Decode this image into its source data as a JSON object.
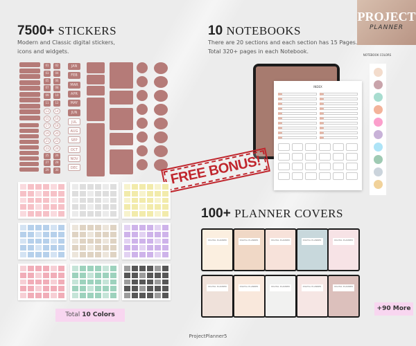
{
  "logo": {
    "line1": "PROJECT",
    "line2": "PLANNER"
  },
  "stickers": {
    "count": "7500+",
    "title": "STICKERS",
    "subtitle_1": "Modern and Classic digital stickers,",
    "subtitle_2": "icons and widgets.",
    "months": [
      "JAN",
      "FEB",
      "MAR",
      "APR",
      "MAY",
      "JUN",
      "JUL",
      "AUG",
      "SEP",
      "OCT",
      "NOV",
      "DEC"
    ],
    "numbers": [
      "01",
      "02",
      "03",
      "04",
      "05",
      "06",
      "07",
      "08",
      "09",
      "10",
      "11",
      "12",
      "13",
      "14",
      "15",
      "16",
      "17",
      "18",
      "19",
      "20",
      "21",
      "22",
      "23",
      "24",
      "25",
      "26",
      "27",
      "28",
      "29",
      "30"
    ],
    "sheet_colors": [
      "#f4b6bd",
      "#d8d8d8",
      "#f0e89c",
      "#a9c8e8",
      "#d9cbb8",
      "#c5a6e6",
      "#ee9fab",
      "#8ccab2",
      "#3a3a3a"
    ],
    "total_prefix": "Total",
    "total_value": "10 Colors"
  },
  "notebooks": {
    "count": "10",
    "title": "NOTEBOOKS",
    "subtitle_1": "There are 20 sections and each section has 15 Pages.",
    "subtitle_2": "Total 320+ pages in each Notebook.",
    "colors_label": "NOTEBOOK COLORS",
    "index_title": "INDEX",
    "colors": [
      "#f3dccc",
      "#c9a4ab",
      "#a8ddd0",
      "#f3b39a",
      "#fb9fcc",
      "#c8b2d8",
      "#aee4f7",
      "#9fcab3",
      "#cbd4dc",
      "#f1d29a"
    ]
  },
  "bonus": {
    "label": "FREE BONUS!"
  },
  "covers": {
    "count": "100+",
    "title": "PLANNER COVERS",
    "cover_label": "DIGITAL PLANNER",
    "more": "+90 More",
    "backgrounds": [
      "#fbefe0",
      "#f0d8c6",
      "#f7e2da",
      "#c8d8dc",
      "#f7e3e6",
      "#efe1da",
      "#f9e8dc",
      "#f1f1f0",
      "#f6e6e4",
      "#dcc0bc"
    ]
  },
  "footer": {
    "brand": "ProjectPlanner5"
  }
}
